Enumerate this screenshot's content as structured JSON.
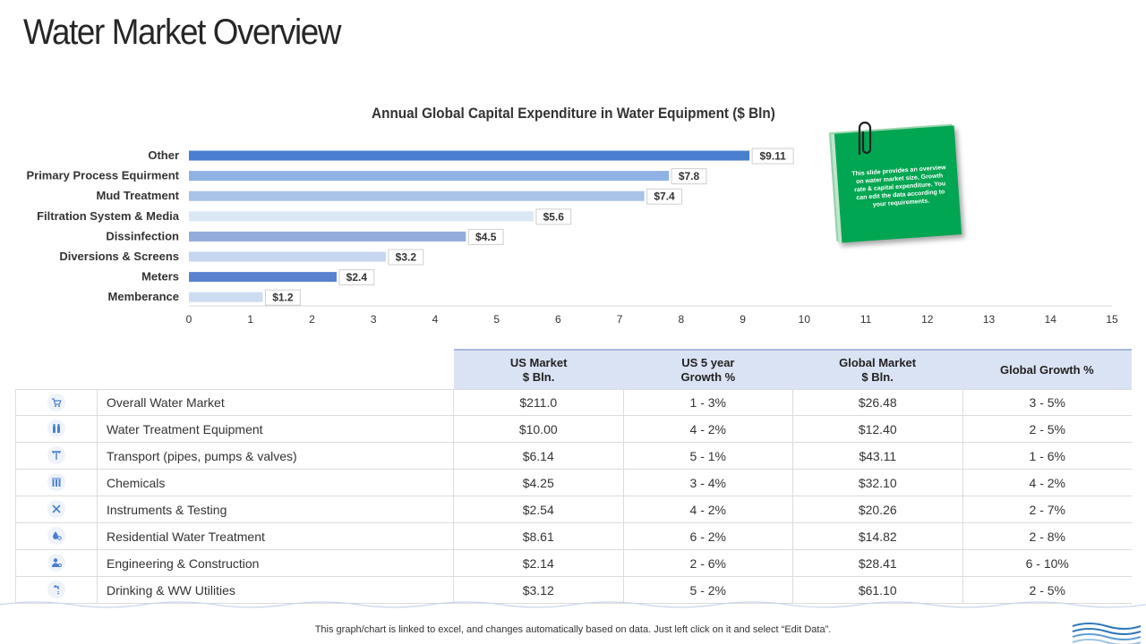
{
  "page": {
    "title": "Water Market Overview",
    "footer_note": "This graph/chart is linked to excel,  and changes automatically based on data. Just left click on it and select “Edit Data”."
  },
  "note": {
    "text": "This slide provides an overview on water market size, Growth rate & capital expenditure. You can edit the data according to your requirements."
  },
  "chart_data": {
    "type": "bar",
    "orientation": "horizontal",
    "title": "Annual Global Capital Expenditure in Water Equipment ($ Bln)",
    "categories": [
      "Other",
      "Primary Process Equirment",
      "Mud Treatment",
      "Filtration System & Media",
      "Dissinfection",
      "Diversions & Screens",
      "Meters",
      "Memberance"
    ],
    "values": [
      9.11,
      7.8,
      7.4,
      5.6,
      4.5,
      3.2,
      2.4,
      1.2
    ],
    "labels": [
      "$9.11",
      "$7.8",
      "$7.4",
      "$5.6",
      "$4.5",
      "$3.2",
      "$2.4",
      "$1.2"
    ],
    "bar_colors": [
      "#4a7fcf",
      "#8fb2e4",
      "#a9c2e7",
      "#dce7f6",
      "#94acdb",
      "#c6d6f0",
      "#5b82cf",
      "#cddcf2"
    ],
    "xlim": [
      0,
      15
    ],
    "xticks": [
      "0",
      "1",
      "2",
      "3",
      "4",
      "5",
      "6",
      "7",
      "8",
      "9",
      "10",
      "11",
      "12",
      "13",
      "14",
      "15"
    ],
    "grid": false,
    "legend": "none"
  },
  "table": {
    "headers": [
      "US Market\n$ Bln.",
      "US 5 year\nGrowth %",
      "Global Market\n$ Bln.",
      "Global Growth %"
    ],
    "rows": [
      {
        "icon": "shopping-cart-icon",
        "name": "Overall Water Market",
        "us_market": "$211.0",
        "us_growth": "1 - 3%",
        "global_market": "$26.48",
        "global_growth": "3 - 5%"
      },
      {
        "icon": "water-bottles-icon",
        "name": "Water Treatment Equipment",
        "us_market": "$10.00",
        "us_growth": "4 - 2%",
        "global_market": "$12.40",
        "global_growth": "2 - 5%"
      },
      {
        "icon": "pipe-valve-icon",
        "name": "Transport (pipes, pumps & valves)",
        "us_market": "$6.14",
        "us_growth": "5 - 1%",
        "global_market": "$43.11",
        "global_growth": "1 - 6%"
      },
      {
        "icon": "chemical-flasks-icon",
        "name": "Chemicals",
        "us_market": "$4.25",
        "us_growth": "3 - 4%",
        "global_market": "$32.10",
        "global_growth": "4 - 2%"
      },
      {
        "icon": "tools-icon",
        "name": "Instruments & Testing",
        "us_market": "$2.54",
        "us_growth": "4 - 2%",
        "global_market": "$20.26",
        "global_growth": "2 - 7%"
      },
      {
        "icon": "water-drop-gear-icon",
        "name": "Residential Water Treatment",
        "us_market": "$8.61",
        "us_growth": "6 - 2%",
        "global_market": "$14.82",
        "global_growth": "2 - 8%"
      },
      {
        "icon": "engineer-icon",
        "name": "Engineering & Construction",
        "us_market": "$2.14",
        "us_growth": "2 - 6%",
        "global_market": "$28.41",
        "global_growth": "6 - 10%"
      },
      {
        "icon": "water-tap-icon",
        "name": "Drinking & WW Utilities",
        "us_market": "$3.12",
        "us_growth": "5 - 2%",
        "global_market": "$61.10",
        "global_growth": "2 - 5%"
      }
    ]
  },
  "colors": {
    "accent_blue": "#4a7fcf",
    "table_header_bg": "#dae3f3",
    "note_green": "#00a651"
  }
}
